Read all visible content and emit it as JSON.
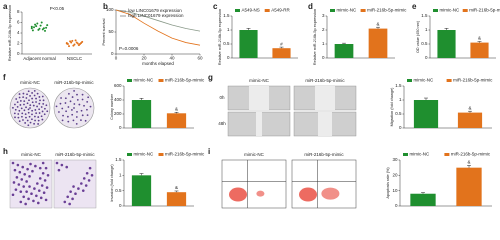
{
  "chart_data": [
    {
      "type": "strip",
      "panel": "a",
      "ylabel": "Relative miR-216b-5p expression",
      "categories": [
        "Adjacent normal",
        "NSCLC"
      ],
      "colors": [
        "#1f8f2f",
        "#e2731c"
      ],
      "values": [
        [
          5.2,
          4.8,
          5.5,
          4.6,
          5.0,
          5.8,
          4.4,
          5.3,
          4.9,
          5.6,
          4.7,
          5.1,
          6.0,
          4.5,
          5.4,
          4.9
        ],
        [
          2.0,
          1.8,
          2.3,
          1.6,
          2.1,
          2.5,
          1.9,
          2.2,
          1.7,
          2.4,
          2.0,
          1.5,
          2.2,
          1.9,
          2.6,
          2.1
        ]
      ],
      "ylim": [
        0,
        8
      ],
      "yticks": [
        0,
        2,
        4,
        6,
        8
      ],
      "annotation": "P<0.05"
    },
    {
      "type": "line",
      "panel": "b",
      "ylabel": "Percent survival",
      "xlabel": "months elapsed",
      "x": [
        0,
        10,
        20,
        30,
        40,
        50,
        60
      ],
      "series": [
        {
          "name": "low LINC01679 expression",
          "color": "#8a9a8a",
          "values": [
            100,
            95,
            86,
            76,
            66,
            58,
            52
          ]
        },
        {
          "name": "high LINC01679 expression",
          "color": "#e2731c",
          "values": [
            100,
            90,
            70,
            52,
            36,
            26,
            20
          ]
        }
      ],
      "xlim": [
        0,
        60
      ],
      "xticks": [
        0,
        20,
        40,
        60
      ],
      "ylim": [
        0,
        100
      ],
      "yticks": [
        0,
        50,
        100
      ],
      "annotation": "P=0.0006"
    },
    {
      "type": "bar",
      "panel": "c",
      "ylabel": "Relative miR-216b-5p expression",
      "categories": [
        "A549-NS",
        "A549-RR"
      ],
      "colors": [
        "#1f8f2f",
        "#e2731c"
      ],
      "values": [
        1,
        0.35
      ],
      "errors": [
        0.06,
        0.04
      ],
      "ylim": [
        0,
        1.5
      ],
      "yticks": [
        0,
        0.5,
        1,
        1.5
      ],
      "annotation": "#"
    },
    {
      "type": "bar",
      "panel": "d",
      "ylabel": "Relative miR-216b-5p expression",
      "categories": [
        "mimic-NC",
        "miR-216b-5p-mimic"
      ],
      "colors": [
        "#1f8f2f",
        "#e2731c"
      ],
      "values": [
        1,
        2.1
      ],
      "errors": [
        0.06,
        0.1
      ],
      "ylim": [
        0,
        3
      ],
      "yticks": [
        0,
        1,
        2,
        3
      ],
      "annotation": "&"
    },
    {
      "type": "bar",
      "panel": "e",
      "ylabel": "OD value (450 nm)",
      "categories": [
        "mimic-NC",
        "miR-216b-5p-mimic"
      ],
      "colors": [
        "#1f8f2f",
        "#e2731c"
      ],
      "values": [
        1,
        0.55
      ],
      "errors": [
        0.06,
        0.04
      ],
      "ylim": [
        0,
        1.5
      ],
      "yticks": [
        0,
        0.5,
        1,
        1.5
      ],
      "annotation": "&"
    },
    {
      "type": "bar",
      "ylabel": "Colony number",
      "categories": [
        "mimic-NC",
        "miR-216b-5p-mimic"
      ],
      "colors": [
        "#1f8f2f",
        "#e2731c"
      ],
      "values": [
        400,
        210
      ],
      "errors": [
        25,
        15
      ],
      "ylim": [
        0,
        600
      ],
      "yticks": [
        0,
        200,
        400,
        600
      ],
      "annotation": "&"
    },
    {
      "type": "bar",
      "ylabel": "Migration (fold change)",
      "categories": [
        "mimic-NC",
        "miR-216b-5p-mimic"
      ],
      "colors": [
        "#1f8f2f",
        "#e2731c"
      ],
      "values": [
        1,
        0.55
      ],
      "errors": [
        0.07,
        0.05
      ],
      "ylim": [
        0,
        1.5
      ],
      "yticks": [
        0,
        0.5,
        1,
        1.5
      ],
      "annotation": "&"
    },
    {
      "type": "bar",
      "ylabel": "Invasion (fold change)",
      "categories": [
        "mimic-NC",
        "miR-216b-5p-mimic"
      ],
      "colors": [
        "#1f8f2f",
        "#e2731c"
      ],
      "values": [
        1,
        0.45
      ],
      "errors": [
        0.06,
        0.04
      ],
      "ylim": [
        0,
        1.5
      ],
      "yticks": [
        0,
        0.5,
        1,
        1.5
      ],
      "annotation": "&"
    },
    {
      "type": "bar",
      "ylabel": "Apoptosis rate (%)",
      "categories": [
        "mimic-NC",
        "miR-216b-5p-mimic"
      ],
      "colors": [
        "#1f8f2f",
        "#e2731c"
      ],
      "values": [
        8,
        25
      ],
      "errors": [
        0.8,
        1.5
      ],
      "ylim": [
        0,
        30
      ],
      "yticks": [
        0,
        10,
        20,
        30
      ],
      "annotation": "&"
    }
  ],
  "images": [
    {
      "panel": "f",
      "columns": [
        "mimic-NC",
        "miR-216b-5p-mimic"
      ]
    },
    {
      "panel": "g",
      "columns": [
        "mimic-NC",
        "miR-216b-5p-mimic"
      ],
      "rows": [
        "0h",
        "48h"
      ]
    },
    {
      "panel": "h",
      "columns": [
        "mimic-NC",
        "miR-216b-5p-mimic"
      ]
    },
    {
      "panel": "i",
      "columns": [
        "mimic-NC",
        "miR-216b-5p-mimic"
      ]
    }
  ]
}
